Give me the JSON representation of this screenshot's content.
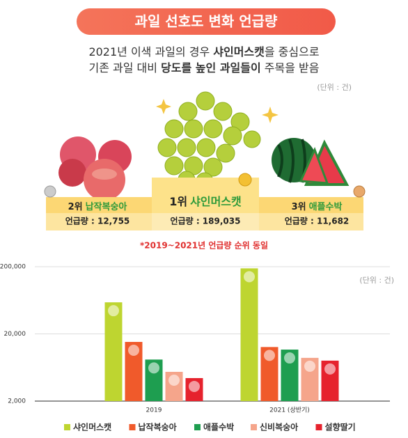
{
  "header": {
    "title": "과일 선호도 변화 언급량",
    "subtitle": [
      [
        {
          "text": "2021년 이색 과일의 경우 ",
          "bold": false
        },
        {
          "text": "샤인머스캣",
          "bold": true
        },
        {
          "text": "을 중심으로",
          "bold": false
        }
      ],
      [
        {
          "text": "기존 과일 대비 ",
          "bold": false
        },
        {
          "text": "당도를 높인 과일들이",
          "bold": true
        },
        {
          "text": " 주목을 받음",
          "bold": false
        }
      ]
    ],
    "unit": "(단위 : 건)"
  },
  "ranking": [
    {
      "rank": "2위",
      "name": "납작복숭아",
      "mention": "언급량 : 12,755"
    },
    {
      "rank": "1위",
      "name": "샤인머스캣",
      "mention": "언급량 : 189,035"
    },
    {
      "rank": "3위",
      "name": "애플수박",
      "mention": "언급량 : 11,682"
    }
  ],
  "note": "*2019~2021년 언급량 순위 동일",
  "chart_data": {
    "type": "bar",
    "unit_note": "(단위 : 건)",
    "log_scale": true,
    "categories": [
      "2019",
      "2021 (상반기)"
    ],
    "ylim": [
      2000,
      200000
    ],
    "yticks": [
      {
        "value": 2000,
        "label": "2,000"
      },
      {
        "value": 20000,
        "label": "20,000"
      },
      {
        "value": 200000,
        "label": "200,000"
      }
    ],
    "grid": true,
    "series": [
      {
        "name": "샤인머스캣",
        "color": "#bed530",
        "values": [
          59000,
          189035
        ]
      },
      {
        "name": "납작복숭아",
        "color": "#f05a2b",
        "values": [
          15200,
          12755
        ]
      },
      {
        "name": "애플수박",
        "color": "#1e9e50",
        "values": [
          8300,
          11682
        ]
      },
      {
        "name": "신비복숭아",
        "color": "#f5a58b",
        "values": [
          5450,
          8800
        ]
      },
      {
        "name": "설향딸기",
        "color": "#e6222d",
        "values": [
          4400,
          8000
        ]
      }
    ]
  }
}
